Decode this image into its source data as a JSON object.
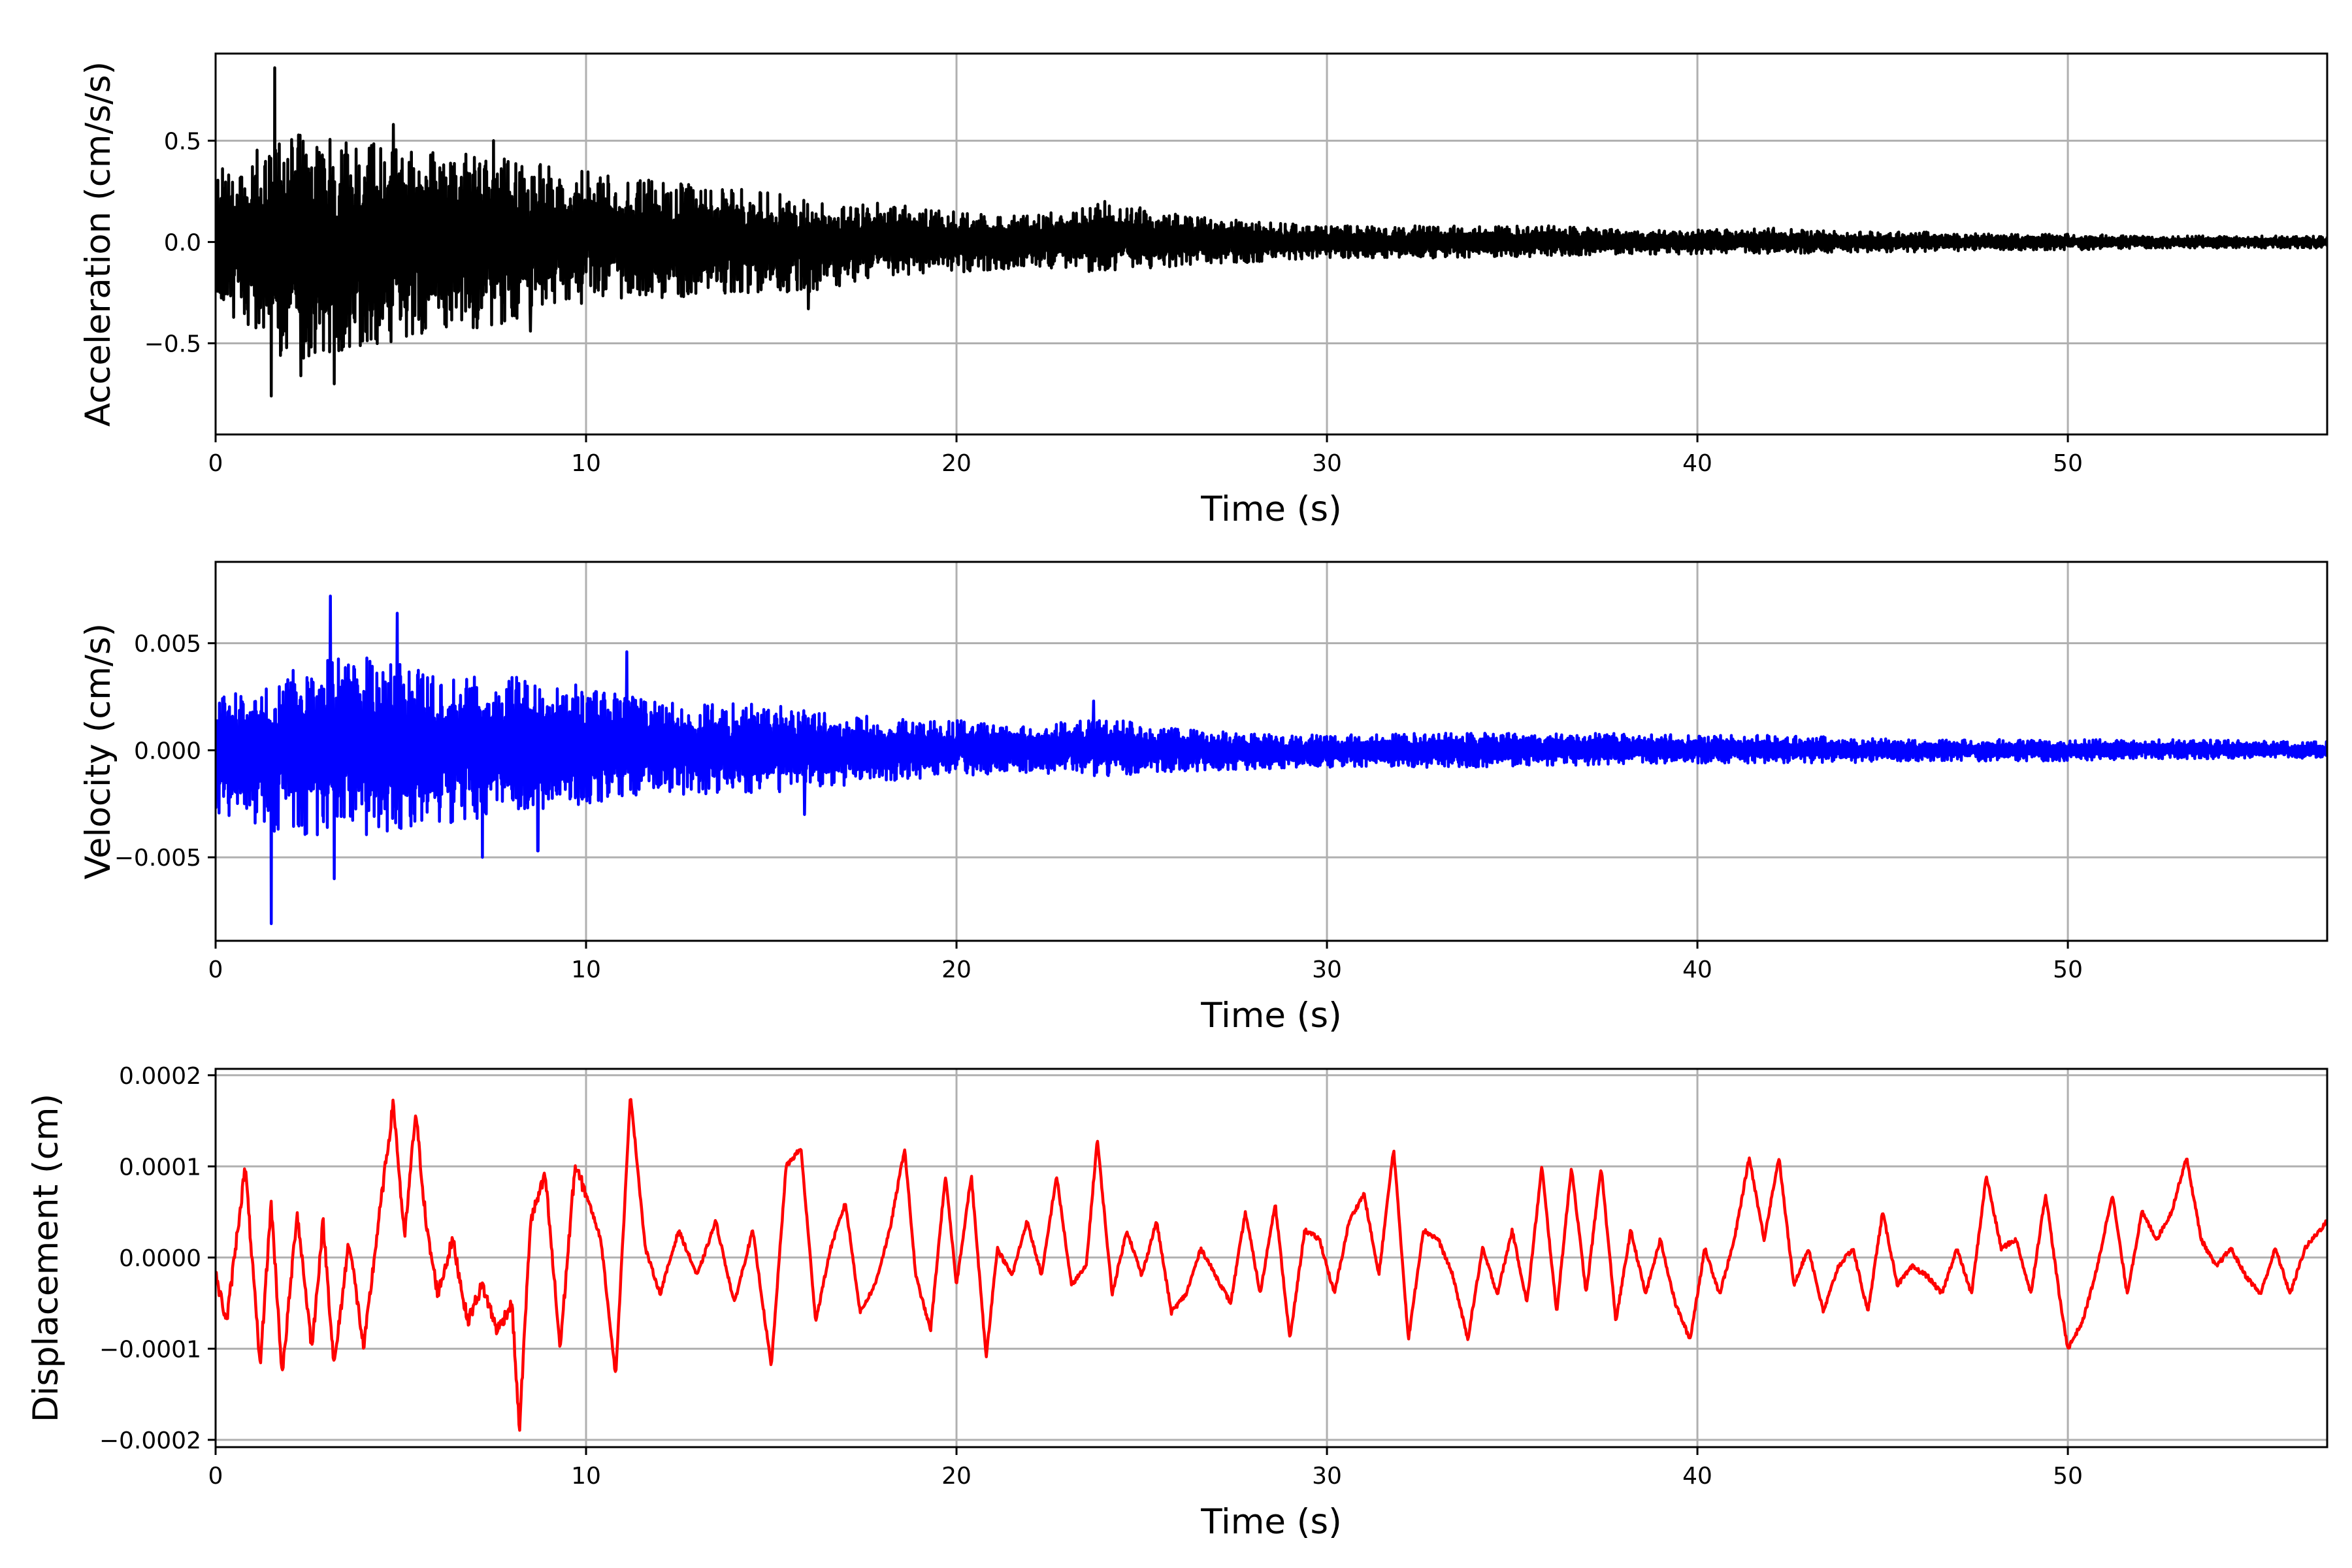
{
  "chart_data": [
    {
      "type": "line",
      "xlabel": "Time (s)",
      "ylabel": "Acceleration (cm/s/s)",
      "xlim": [
        0,
        57
      ],
      "ylim": [
        -0.95,
        0.93
      ],
      "xticks": [
        0,
        10,
        20,
        30,
        40,
        50
      ],
      "xtick_labels": [
        "0",
        "10",
        "20",
        "30",
        "40",
        "50"
      ],
      "yticks": [
        -0.5,
        0.0,
        0.5
      ],
      "ytick_labels": [
        "−0.5",
        "0.0",
        "0.5"
      ],
      "grid": true,
      "color": "#000000",
      "series": [
        {
          "x": [
            0,
            2,
            4,
            6,
            8,
            10,
            12,
            14,
            16,
            18,
            20,
            22,
            24,
            26,
            28,
            30,
            32,
            34,
            36,
            38,
            40,
            42,
            44,
            46,
            48,
            50,
            52,
            54,
            56,
            57
          ],
          "y_upper": [
            0.35,
            0.55,
            0.5,
            0.45,
            0.42,
            0.35,
            0.3,
            0.27,
            0.22,
            0.19,
            0.15,
            0.13,
            0.2,
            0.14,
            0.1,
            0.08,
            0.08,
            0.08,
            0.08,
            0.06,
            0.06,
            0.07,
            0.05,
            0.05,
            0.04,
            0.04,
            0.03,
            0.03,
            0.03,
            0.03
          ],
          "y_lower": [
            -0.3,
            -0.6,
            -0.55,
            -0.45,
            -0.4,
            -0.3,
            -0.28,
            -0.25,
            -0.25,
            -0.17,
            -0.15,
            -0.13,
            -0.15,
            -0.12,
            -0.1,
            -0.08,
            -0.08,
            -0.08,
            -0.07,
            -0.06,
            -0.06,
            -0.06,
            -0.05,
            -0.05,
            -0.04,
            -0.04,
            -0.03,
            -0.03,
            -0.03,
            -0.03
          ],
          "peaks": [
            [
              1.6,
              0.86
            ],
            [
              1.5,
              -0.76
            ],
            [
              2.3,
              -0.66
            ],
            [
              3.2,
              -0.7
            ],
            [
              4.8,
              0.58
            ],
            [
              7.5,
              0.5
            ],
            [
              8.5,
              -0.44
            ],
            [
              16,
              -0.33
            ],
            [
              24,
              0.2
            ]
          ]
        }
      ]
    },
    {
      "type": "line",
      "xlabel": "Time (s)",
      "ylabel": "Velocity (cm/s)",
      "xlim": [
        0,
        57
      ],
      "ylim": [
        -0.0089,
        0.0088
      ],
      "xticks": [
        0,
        10,
        20,
        30,
        40,
        50
      ],
      "xtick_labels": [
        "0",
        "10",
        "20",
        "30",
        "40",
        "50"
      ],
      "yticks": [
        -0.005,
        0.0,
        0.005
      ],
      "ytick_labels": [
        "−0.005",
        "0.000",
        "0.005"
      ],
      "grid": true,
      "color": "#0000ff",
      "series": [
        {
          "x": [
            0,
            2,
            4,
            6,
            8,
            10,
            12,
            14,
            16,
            18,
            20,
            22,
            24,
            26,
            28,
            30,
            32,
            34,
            36,
            38,
            40,
            42,
            44,
            46,
            48,
            50,
            52,
            54,
            56,
            57
          ],
          "y_upper": [
            0.0025,
            0.004,
            0.0045,
            0.0035,
            0.0035,
            0.003,
            0.0022,
            0.0022,
            0.002,
            0.0015,
            0.0014,
            0.0012,
            0.0015,
            0.001,
            0.0008,
            0.0007,
            0.0008,
            0.0008,
            0.0008,
            0.0008,
            0.0007,
            0.0007,
            0.0006,
            0.0005,
            0.0005,
            0.0005,
            0.0005,
            0.0005,
            0.0004,
            0.0004
          ],
          "y_lower": [
            -0.003,
            -0.004,
            -0.004,
            -0.0035,
            -0.003,
            -0.0025,
            -0.002,
            -0.0022,
            -0.0018,
            -0.0015,
            -0.0012,
            -0.0011,
            -0.0012,
            -0.001,
            -0.0009,
            -0.0008,
            -0.0008,
            -0.0008,
            -0.0007,
            -0.0007,
            -0.0006,
            -0.0006,
            -0.0006,
            -0.0005,
            -0.0005,
            -0.0005,
            -0.0004,
            -0.0004,
            -0.0004,
            -0.0004
          ],
          "peaks": [
            [
              1.5,
              -0.0081
            ],
            [
              3.1,
              0.0072
            ],
            [
              3.2,
              -0.006
            ],
            [
              4.9,
              0.0064
            ],
            [
              7.2,
              -0.005
            ],
            [
              11.1,
              0.0046
            ],
            [
              8.7,
              -0.0047
            ],
            [
              23.7,
              0.0023
            ],
            [
              15.9,
              -0.003
            ]
          ]
        }
      ]
    },
    {
      "type": "line",
      "xlabel": "Time (s)",
      "ylabel": "Displacement (cm)",
      "xlim": [
        0,
        57
      ],
      "ylim": [
        -0.000208,
        0.000207
      ],
      "xticks": [
        0,
        10,
        20,
        30,
        40,
        50
      ],
      "xtick_labels": [
        "0",
        "10",
        "20",
        "30",
        "40",
        "50"
      ],
      "yticks": [
        -0.0002,
        -0.0001,
        0.0,
        0.0001,
        0.0002
      ],
      "ytick_labels": [
        "−0.0002",
        "−0.0001",
        "0.0000",
        "0.0001",
        "0.0002"
      ],
      "grid": true,
      "color": "#ff0000",
      "series": [
        {
          "x": [
            0,
            0.3,
            0.8,
            1.2,
            1.5,
            1.8,
            2.2,
            2.6,
            2.9,
            3.2,
            3.6,
            4.0,
            4.4,
            4.8,
            5.1,
            5.4,
            5.7,
            6.0,
            6.4,
            6.8,
            7.2,
            7.6,
            8.0,
            8.2,
            8.5,
            8.9,
            9.3,
            9.7,
            10.0,
            10.4,
            10.8,
            11.2,
            11.6,
            12.0,
            12.5,
            13.0,
            13.5,
            14.0,
            14.5,
            15.0,
            15.4,
            15.8,
            16.2,
            16.6,
            17.0,
            17.4,
            17.8,
            18.2,
            18.6,
            18.9,
            19.3,
            19.7,
            20.0,
            20.4,
            20.8,
            21.1,
            21.5,
            21.9,
            22.3,
            22.7,
            23.1,
            23.5,
            23.8,
            24.2,
            24.6,
            25.0,
            25.4,
            25.8,
            26.2,
            26.6,
            27.0,
            27.4,
            27.8,
            28.2,
            28.6,
            29.0,
            29.4,
            29.8,
            30.2,
            30.6,
            31.0,
            31.4,
            31.8,
            32.2,
            32.6,
            33.0,
            33.4,
            33.8,
            34.2,
            34.6,
            35.0,
            35.4,
            35.8,
            36.2,
            36.6,
            37.0,
            37.4,
            37.8,
            38.2,
            38.6,
            39.0,
            39.4,
            39.8,
            40.2,
            40.6,
            41.0,
            41.4,
            41.8,
            42.2,
            42.6,
            43.0,
            43.4,
            43.8,
            44.2,
            44.6,
            45.0,
            45.4,
            45.8,
            46.2,
            46.6,
            47.0,
            47.4,
            47.8,
            48.2,
            48.6,
            49.0,
            49.4,
            49.8,
            50.0,
            50.4,
            50.8,
            51.2,
            51.6,
            52.0,
            52.4,
            52.8,
            53.2,
            53.6,
            54.0,
            54.4,
            54.8,
            55.2,
            55.6,
            56.0,
            56.4,
            56.8,
            57.0
          ],
          "y": [
            -2e-05,
            -7e-05,
            0.0001,
            -0.00012,
            6e-05,
            -0.00013,
            5e-05,
            -0.0001,
            4e-05,
            -0.00012,
            2e-05,
            -0.0001,
            4e-05,
            0.00017,
            2e-05,
            0.00016,
            3e-05,
            -4e-05,
            2e-05,
            -7e-05,
            -3e-05,
            -8e-05,
            -5e-05,
            -0.00019,
            4e-05,
            9e-05,
            -0.0001,
            0.0001,
            7e-05,
            2e-05,
            -0.00013,
            0.00018,
            1e-05,
            -4e-05,
            3e-05,
            -2e-05,
            4e-05,
            -5e-05,
            3e-05,
            -0.00012,
            0.0001,
            0.00012,
            -7e-05,
            1e-05,
            6e-05,
            -6e-05,
            -3e-05,
            3e-05,
            0.00012,
            -2e-05,
            -8e-05,
            9e-05,
            -3e-05,
            9e-05,
            -0.00011,
            1e-05,
            -2e-05,
            4e-05,
            -2e-05,
            9e-05,
            -3e-05,
            -1e-05,
            0.00013,
            -4e-05,
            3e-05,
            -2e-05,
            4e-05,
            -6e-05,
            -4e-05,
            1e-05,
            -2e-05,
            -5e-05,
            5e-05,
            -4e-05,
            6e-05,
            -9e-05,
            3e-05,
            2e-05,
            -4e-05,
            4e-05,
            7e-05,
            -2e-05,
            0.00012,
            -9e-05,
            3e-05,
            2e-05,
            -2e-05,
            -9e-05,
            1e-05,
            -4e-05,
            3e-05,
            -5e-05,
            0.0001,
            -6e-05,
            0.0001,
            -4e-05,
            0.0001,
            -7e-05,
            3e-05,
            -4e-05,
            2e-05,
            -5e-05,
            -9e-05,
            1e-05,
            -4e-05,
            2e-05,
            0.00011,
            2e-05,
            0.00011,
            -3e-05,
            1e-05,
            -6e-05,
            -1e-05,
            1e-05,
            -6e-05,
            5e-05,
            -3e-05,
            -1e-05,
            -2e-05,
            -4e-05,
            1e-05,
            -4e-05,
            9e-05,
            1e-05,
            2e-05,
            -4e-05,
            7e-05,
            -5e-05,
            -0.0001,
            -7e-05,
            -1e-05,
            7e-05,
            -4e-05,
            5e-05,
            2e-05,
            5e-05,
            0.00011,
            2e-05,
            -1e-05,
            1e-05,
            -2e-05,
            -4e-05,
            1e-05,
            -4e-05,
            1e-05,
            3e-05,
            4e-05
          ]
        }
      ]
    }
  ]
}
